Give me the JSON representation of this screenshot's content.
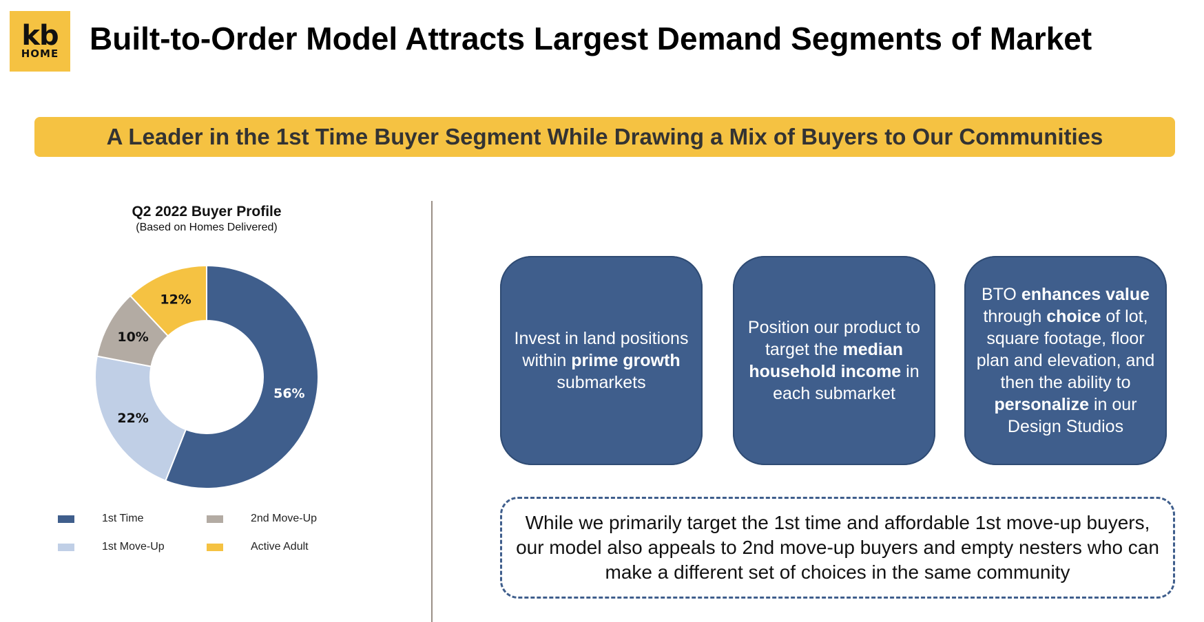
{
  "logo": {
    "line1": "kb",
    "line2": "HOME"
  },
  "page_title": "Built-to-Order Model Attracts Largest Demand Segments of Market",
  "banner": "A Leader in the 1st Time Buyer Segment While Drawing a Mix of Buyers to Our Communities",
  "chart_data": {
    "type": "pie",
    "title": "Q2 2022 Buyer Profile",
    "subtitle": "(Based on Homes Delivered)",
    "categories": [
      "1st Time",
      "1st Move-Up",
      "2nd Move-Up",
      "Active Adult"
    ],
    "values": [
      56,
      22,
      10,
      12
    ],
    "labels": [
      "56%",
      "22%",
      "10%",
      "12%"
    ],
    "unit": "%",
    "donut": true,
    "colors": [
      "#3f5e8c",
      "#c0cfe6",
      "#b3aba3",
      "#f5c242"
    ],
    "label_colors": [
      "#ffffff",
      "#111111",
      "#111111",
      "#111111"
    ],
    "legend_position": "bottom"
  },
  "cards": [
    {
      "parts": [
        [
          "Invest in land positions within ",
          false
        ],
        [
          "prime growth",
          true
        ],
        [
          " submarkets",
          false
        ]
      ]
    },
    {
      "parts": [
        [
          "Position our product to target the ",
          false
        ],
        [
          "median household income",
          true
        ],
        [
          " in each submarket",
          false
        ]
      ]
    },
    {
      "parts": [
        [
          "BTO ",
          false
        ],
        [
          "enhances value",
          true
        ],
        [
          " through ",
          false
        ],
        [
          "choice",
          true
        ],
        [
          " of lot, square footage, floor plan and elevation, and then the ability to ",
          false
        ],
        [
          "personalize",
          true
        ],
        [
          " in our Design Studios",
          false
        ]
      ]
    }
  ],
  "note": "While we primarily target the 1st time and affordable 1st move-up buyers, our model also appeals to 2nd move-up buyers and empty nesters who can make a different set of choices in the same community"
}
